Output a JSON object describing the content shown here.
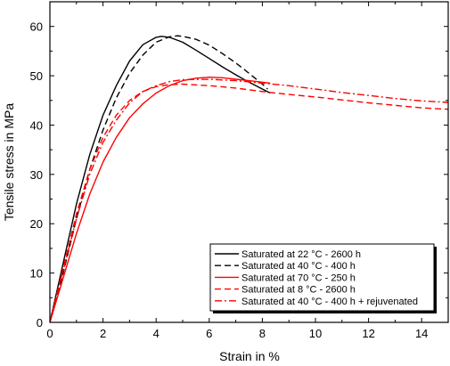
{
  "chart_data": {
    "type": "line",
    "title": "",
    "xlabel": "Strain in %",
    "ylabel": "Tensile stress in MPa",
    "xlim": [
      0,
      15
    ],
    "ylim": [
      0,
      65
    ],
    "xticks": [
      0,
      2,
      4,
      6,
      8,
      10,
      12,
      14
    ],
    "yticks": [
      0,
      10,
      20,
      30,
      40,
      50,
      60
    ],
    "grid": false,
    "legend_position": "bottom-right",
    "series": [
      {
        "name": "Saturated at 22 °C - 2600 h",
        "color": "#000000",
        "dash": "solid",
        "x": [
          0,
          0.5,
          1,
          1.5,
          2,
          2.5,
          3,
          3.5,
          4,
          4.2,
          4.5,
          5,
          5.5,
          6,
          6.5,
          7,
          7.5,
          8,
          8.3
        ],
        "y": [
          0,
          12,
          24,
          34,
          42,
          48,
          53,
          56.3,
          57.8,
          58,
          57.8,
          56.8,
          55.2,
          53.5,
          51.8,
          50.2,
          48.7,
          47.3,
          46.5
        ]
      },
      {
        "name": "Saturated at 40 °C - 400 h",
        "color": "#000000",
        "dash": "dash",
        "x": [
          0,
          0.5,
          1,
          1.5,
          2,
          2.5,
          3,
          3.5,
          4,
          4.5,
          4.8,
          5,
          5.5,
          6,
          6.5,
          7,
          7.5,
          8,
          8.2
        ],
        "y": [
          0,
          10,
          21,
          31,
          39,
          45.5,
          50.5,
          54.2,
          56.8,
          57.9,
          58.1,
          58,
          57.4,
          56.2,
          54.5,
          52.6,
          50.5,
          48.3,
          47.3
        ]
      },
      {
        "name": "Saturated at 70 °C - 250 h",
        "color": "#ff0000",
        "dash": "solid",
        "x": [
          0,
          0.5,
          1,
          1.5,
          2,
          2.5,
          3,
          3.5,
          4,
          4.5,
          5,
          5.5,
          6,
          6.5,
          7,
          7.5,
          8,
          8.3
        ],
        "y": [
          0,
          9,
          18,
          26,
          32.5,
          37.5,
          41.5,
          44.3,
          46.5,
          48,
          49,
          49.5,
          49.7,
          49.6,
          49.3,
          49,
          48.7,
          48.5
        ]
      },
      {
        "name": "Saturated at 8 °C - 2600 h",
        "color": "#ff0000",
        "dash": "dash",
        "x": [
          0,
          0.5,
          1,
          1.5,
          2,
          2.5,
          3,
          3.5,
          4,
          4.5,
          5,
          6,
          7,
          8,
          9,
          10,
          11,
          12,
          13,
          14,
          15
        ],
        "y": [
          0,
          11,
          22,
          31,
          37.5,
          42,
          45,
          46.8,
          47.8,
          48.2,
          48.3,
          48,
          47.5,
          46.8,
          46.2,
          45.7,
          45.1,
          44.5,
          44,
          43.5,
          43.2
        ]
      },
      {
        "name": "Saturated at 40 °C - 400 h + rejuvenated",
        "color": "#ff0000",
        "dash": "dashdot",
        "x": [
          0,
          0.5,
          1,
          1.5,
          2,
          2.5,
          3,
          3.5,
          4,
          4.5,
          5,
          6,
          7,
          8,
          9,
          10,
          11,
          12,
          13,
          14,
          15
        ],
        "y": [
          0,
          10.5,
          21,
          30,
          36.5,
          41,
          44.5,
          46.8,
          48,
          48.8,
          49.2,
          49.3,
          49,
          48.5,
          48,
          47.3,
          46.6,
          46,
          45.4,
          44.9,
          44.6
        ]
      }
    ]
  }
}
